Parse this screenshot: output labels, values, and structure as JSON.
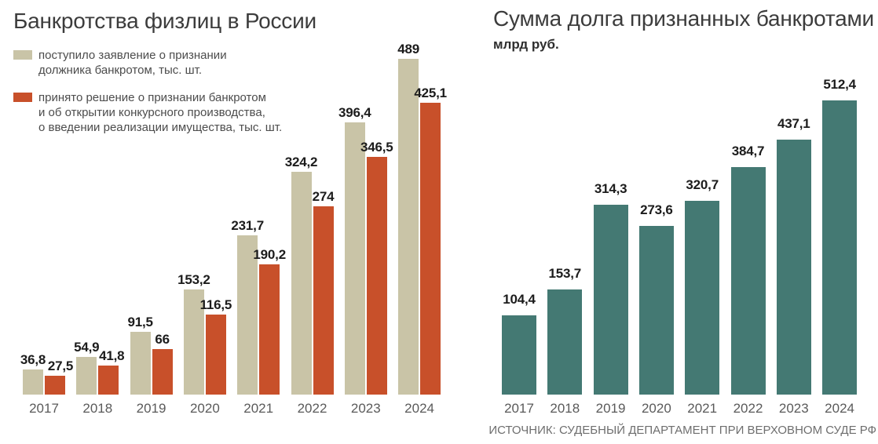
{
  "left_chart": {
    "title": "Банкротства физлиц в России",
    "legend": [
      {
        "color": "#c9c4a7",
        "lines": [
          "поступило заявление о признании",
          "должника банкротом, тыс. шт."
        ]
      },
      {
        "color": "#c8502a",
        "lines": [
          "принято решение о признании банкротом",
          "и об открытии конкурсного производства,",
          "о введении реализации имущества, тыс. шт."
        ]
      }
    ],
    "chart_data": {
      "type": "bar",
      "categories": [
        "2017",
        "2018",
        "2019",
        "2020",
        "2021",
        "2022",
        "2023",
        "2024"
      ],
      "series": [
        {
          "name": "поступило заявление о признании должника банкротом, тыс. шт.",
          "color": "#c9c4a7",
          "values": [
            36.8,
            54.9,
            91.5,
            153.2,
            231.7,
            324.2,
            396.4,
            489
          ]
        },
        {
          "name": "принято решение о признании банкротом и об открытии конкурсного производства, о введении реализации имущества, тыс. шт.",
          "color": "#c8502a",
          "values": [
            27.5,
            41.8,
            66,
            116.5,
            190.2,
            274,
            346.5,
            425.1
          ]
        }
      ],
      "unit": "тыс. шт.",
      "ylim": [
        0,
        489
      ]
    }
  },
  "right_chart": {
    "title": "Сумма долга признанных банкротами",
    "subtitle": "млрд руб.",
    "chart_data": {
      "type": "bar",
      "categories": [
        "2017",
        "2018",
        "2019",
        "2020",
        "2021",
        "2022",
        "2023",
        "2024"
      ],
      "series": [
        {
          "name": "Сумма долга признанных банкротами, млрд руб.",
          "color": "#447973",
          "values": [
            104.4,
            153.7,
            314.3,
            273.6,
            320.7,
            384.7,
            437.1,
            512.4
          ]
        }
      ],
      "unit": "млрд руб.",
      "ylim": [
        0,
        512.4
      ]
    },
    "source": "ИСТОЧНИК: СУДЕБНЫЙ ДЕПАРТАМЕНТ ПРИ ВЕРХОВНОМ СУДЕ РФ"
  }
}
